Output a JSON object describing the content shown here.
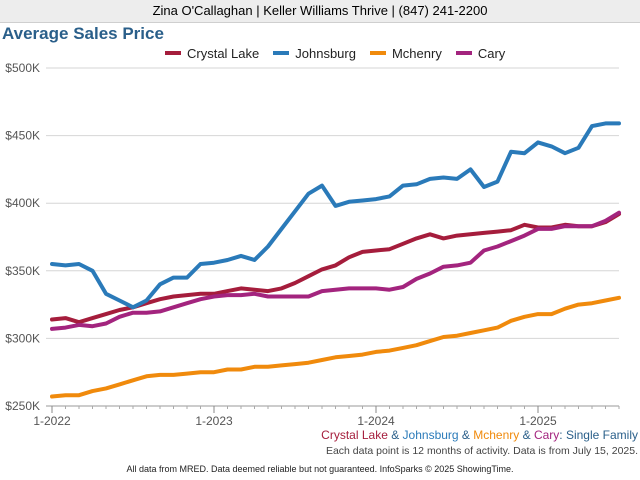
{
  "header": {
    "contact": "Zina O'Callaghan | Keller Williams Thrive | (847) 241-2200"
  },
  "chart_data": {
    "type": "line",
    "title": "Average Sales Price",
    "y_ticks": [
      "$250K",
      "$300K",
      "$350K",
      "$400K",
      "$450K",
      "$500K"
    ],
    "ylim": [
      250000,
      500000
    ],
    "x_ticks": [
      "1-2022",
      "1-2023",
      "1-2024",
      "1-2025"
    ],
    "x_tick_index": [
      0,
      12,
      24,
      36
    ],
    "grid": true,
    "legend_position": "top",
    "series": [
      {
        "name": "Crystal Lake",
        "color": "#a51d3c",
        "values": [
          314,
          315,
          312,
          315,
          318,
          321,
          323,
          326,
          329,
          331,
          332,
          333,
          333,
          335,
          337,
          336,
          335,
          337,
          341,
          346,
          351,
          354,
          360,
          364,
          365,
          366,
          370,
          374,
          377,
          374,
          376,
          377,
          378,
          379,
          380,
          384,
          382,
          382,
          384,
          383,
          383,
          386,
          392
        ]
      },
      {
        "name": "Johnsburg",
        "color": "#2a7ab9",
        "values": [
          355,
          354,
          355,
          350,
          333,
          328,
          323,
          328,
          340,
          345,
          345,
          355,
          356,
          358,
          361,
          358,
          368,
          381,
          394,
          407,
          413,
          398,
          401,
          402,
          403,
          405,
          413,
          414,
          418,
          419,
          418,
          425,
          412,
          416,
          438,
          437,
          445,
          442,
          437,
          441,
          457,
          459,
          459
        ]
      },
      {
        "name": "Mchenry",
        "color": "#f08a0c",
        "values": [
          257,
          258,
          258,
          261,
          263,
          266,
          269,
          272,
          273,
          273,
          274,
          275,
          275,
          277,
          277,
          279,
          279,
          280,
          281,
          282,
          284,
          286,
          287,
          288,
          290,
          291,
          293,
          295,
          298,
          301,
          302,
          304,
          306,
          308,
          313,
          316,
          318,
          318,
          322,
          325,
          326,
          328,
          330
        ]
      },
      {
        "name": "Cary",
        "color": "#a3247e",
        "values": [
          307,
          308,
          310,
          309,
          311,
          316,
          319,
          319,
          320,
          323,
          326,
          329,
          331,
          332,
          332,
          333,
          331,
          331,
          331,
          331,
          335,
          336,
          337,
          337,
          337,
          336,
          338,
          344,
          348,
          353,
          354,
          356,
          365,
          368,
          372,
          376,
          381,
          381,
          383,
          383,
          383,
          387,
          393
        ]
      }
    ]
  },
  "subtitle": {
    "parts": [
      "Crystal Lake",
      " & ",
      "Johnsburg",
      " & ",
      "Mchenry",
      " & ",
      "Cary",
      ": Single Family"
    ]
  },
  "note": "Each data point is 12 months of activity. Data is from July 15, 2025.",
  "footer": "All data from MRED. Data deemed reliable but not guaranteed. InfoSparks © 2025 ShowingTime."
}
